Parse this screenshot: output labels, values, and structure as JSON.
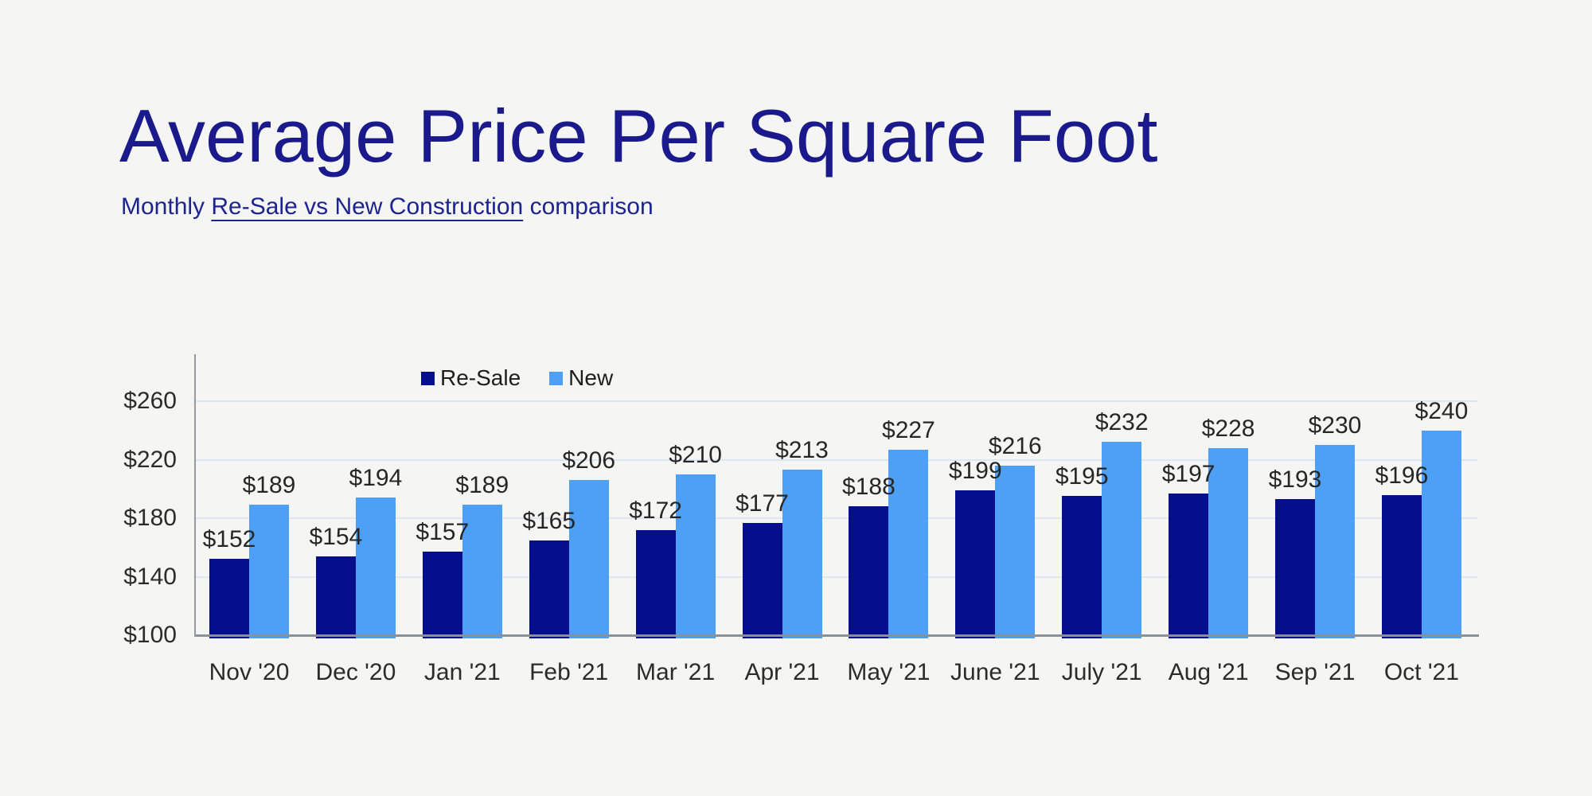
{
  "page": {
    "background_color": "#f5f6f4"
  },
  "header": {
    "title": "Average Price Per Square Foot",
    "title_color": "#1a1a8c",
    "subtitle_prefix": "Monthly ",
    "subtitle_underlined": "Re-Sale vs New Construction",
    "subtitle_suffix": " comparison",
    "subtitle_color": "#1c2490"
  },
  "legend": {
    "items": [
      {
        "label": "Re-Sale",
        "color": "#050e8d"
      },
      {
        "label": "New",
        "color": "#4da0f5"
      }
    ]
  },
  "chart_data": {
    "type": "bar",
    "title": "Average Price Per Square Foot",
    "subtitle": "Monthly Re-Sale vs New Construction comparison",
    "categories": [
      "Nov '20",
      "Dec '20",
      "Jan '21",
      "Feb '21",
      "Mar '21",
      "Apr '21",
      "May '21",
      "June '21",
      "July '21",
      "Aug '21",
      "Sep '21",
      "Oct '21"
    ],
    "series": [
      {
        "name": "Re-Sale",
        "color": "#050e8d",
        "values": [
          152,
          154,
          157,
          165,
          172,
          177,
          188,
          199,
          195,
          197,
          193,
          196
        ]
      },
      {
        "name": "New",
        "color": "#4da0f5",
        "values": [
          189,
          194,
          189,
          206,
          210,
          213,
          227,
          216,
          232,
          228,
          230,
          240
        ]
      }
    ],
    "value_prefix": "$",
    "data_labels": true,
    "ylim": [
      100,
      280
    ],
    "yticks": [
      100,
      140,
      180,
      220,
      260
    ],
    "grid": true,
    "legend_position": "top-center",
    "axis_color": "#969aa1",
    "gridline_color": "#dde6f1",
    "label_color": "#262626"
  }
}
